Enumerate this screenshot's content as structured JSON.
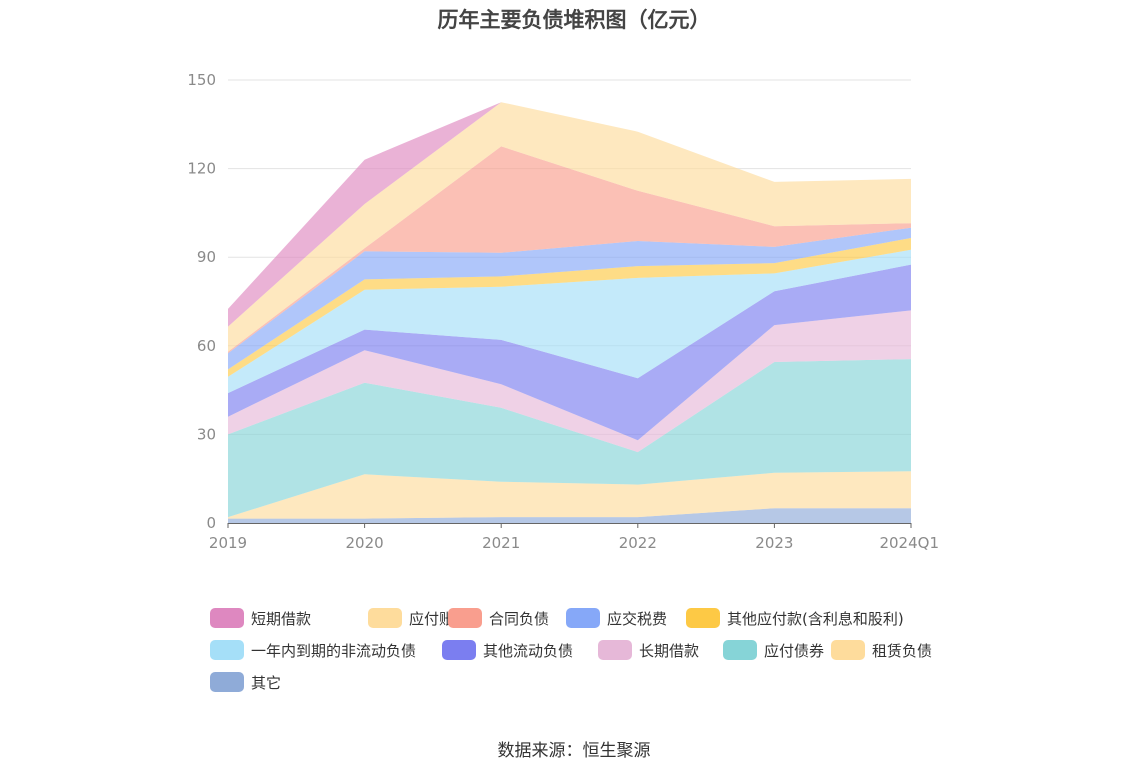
{
  "title": "历年主要负债堆积图（亿元）",
  "source": "数据来源：恒生聚源",
  "chart_data": {
    "type": "area",
    "stacked": true,
    "title": "历年主要负债堆积图（亿元）",
    "xlabel": "",
    "ylabel": "",
    "categories": [
      "2019",
      "2020",
      "2021",
      "2022",
      "2023",
      "2024Q1"
    ],
    "ylim": [
      0,
      150
    ],
    "yticks": [
      0,
      30,
      60,
      90,
      120,
      150
    ],
    "grid": true,
    "legend_position": "bottom",
    "series": [
      {
        "name": "其它",
        "color": "#8fabd8",
        "values": [
          1.5,
          1.5,
          2,
          2,
          5,
          5
        ]
      },
      {
        "name": "租赁负债",
        "color": "#fedc9c",
        "values": [
          0.5,
          15,
          12,
          11,
          12,
          12.5
        ]
      },
      {
        "name": "应付债券",
        "color": "#86d4d7",
        "values": [
          28,
          31,
          25,
          11,
          37.5,
          38
        ]
      },
      {
        "name": "长期借款",
        "color": "#e6b8d8",
        "values": [
          6,
          11,
          8,
          4,
          12.5,
          16.5
        ]
      },
      {
        "name": "其他流动负债",
        "color": "#7b7ef0",
        "values": [
          8,
          7,
          15,
          21,
          11.5,
          15.5
        ]
      },
      {
        "name": "一年内到期的非流动负债",
        "color": "#a5dff8",
        "values": [
          5.5,
          13.5,
          18,
          34,
          6,
          5
        ]
      },
      {
        "name": "其他应付款(含利息和股利)",
        "color": "#fdc945",
        "values": [
          2.5,
          3.5,
          3.5,
          4,
          3.5,
          4
        ]
      },
      {
        "name": "应交税费",
        "color": "#86a8f8",
        "values": [
          5.5,
          9.5,
          8,
          8.5,
          5.5,
          3.5
        ]
      },
      {
        "name": "合同负债",
        "color": "#f99e8e",
        "values": [
          0.5,
          1,
          36,
          17,
          7,
          1.5
        ]
      },
      {
        "name": "应付账款",
        "color": "#fedc9c",
        "values": [
          8.5,
          15,
          15,
          20,
          15,
          15
        ]
      },
      {
        "name": "短期借款",
        "color": "#de88c0",
        "values": [
          6,
          15,
          0,
          0,
          0,
          0
        ]
      }
    ],
    "legend_order": [
      "短期借款",
      "应付账款",
      "合同负债",
      "应交税费",
      "其他应付款(含利息和股利)",
      "一年内到期的非流动负债",
      "其他流动负债",
      "长期借款",
      "应付债券",
      "租赁负债",
      "其它"
    ]
  }
}
